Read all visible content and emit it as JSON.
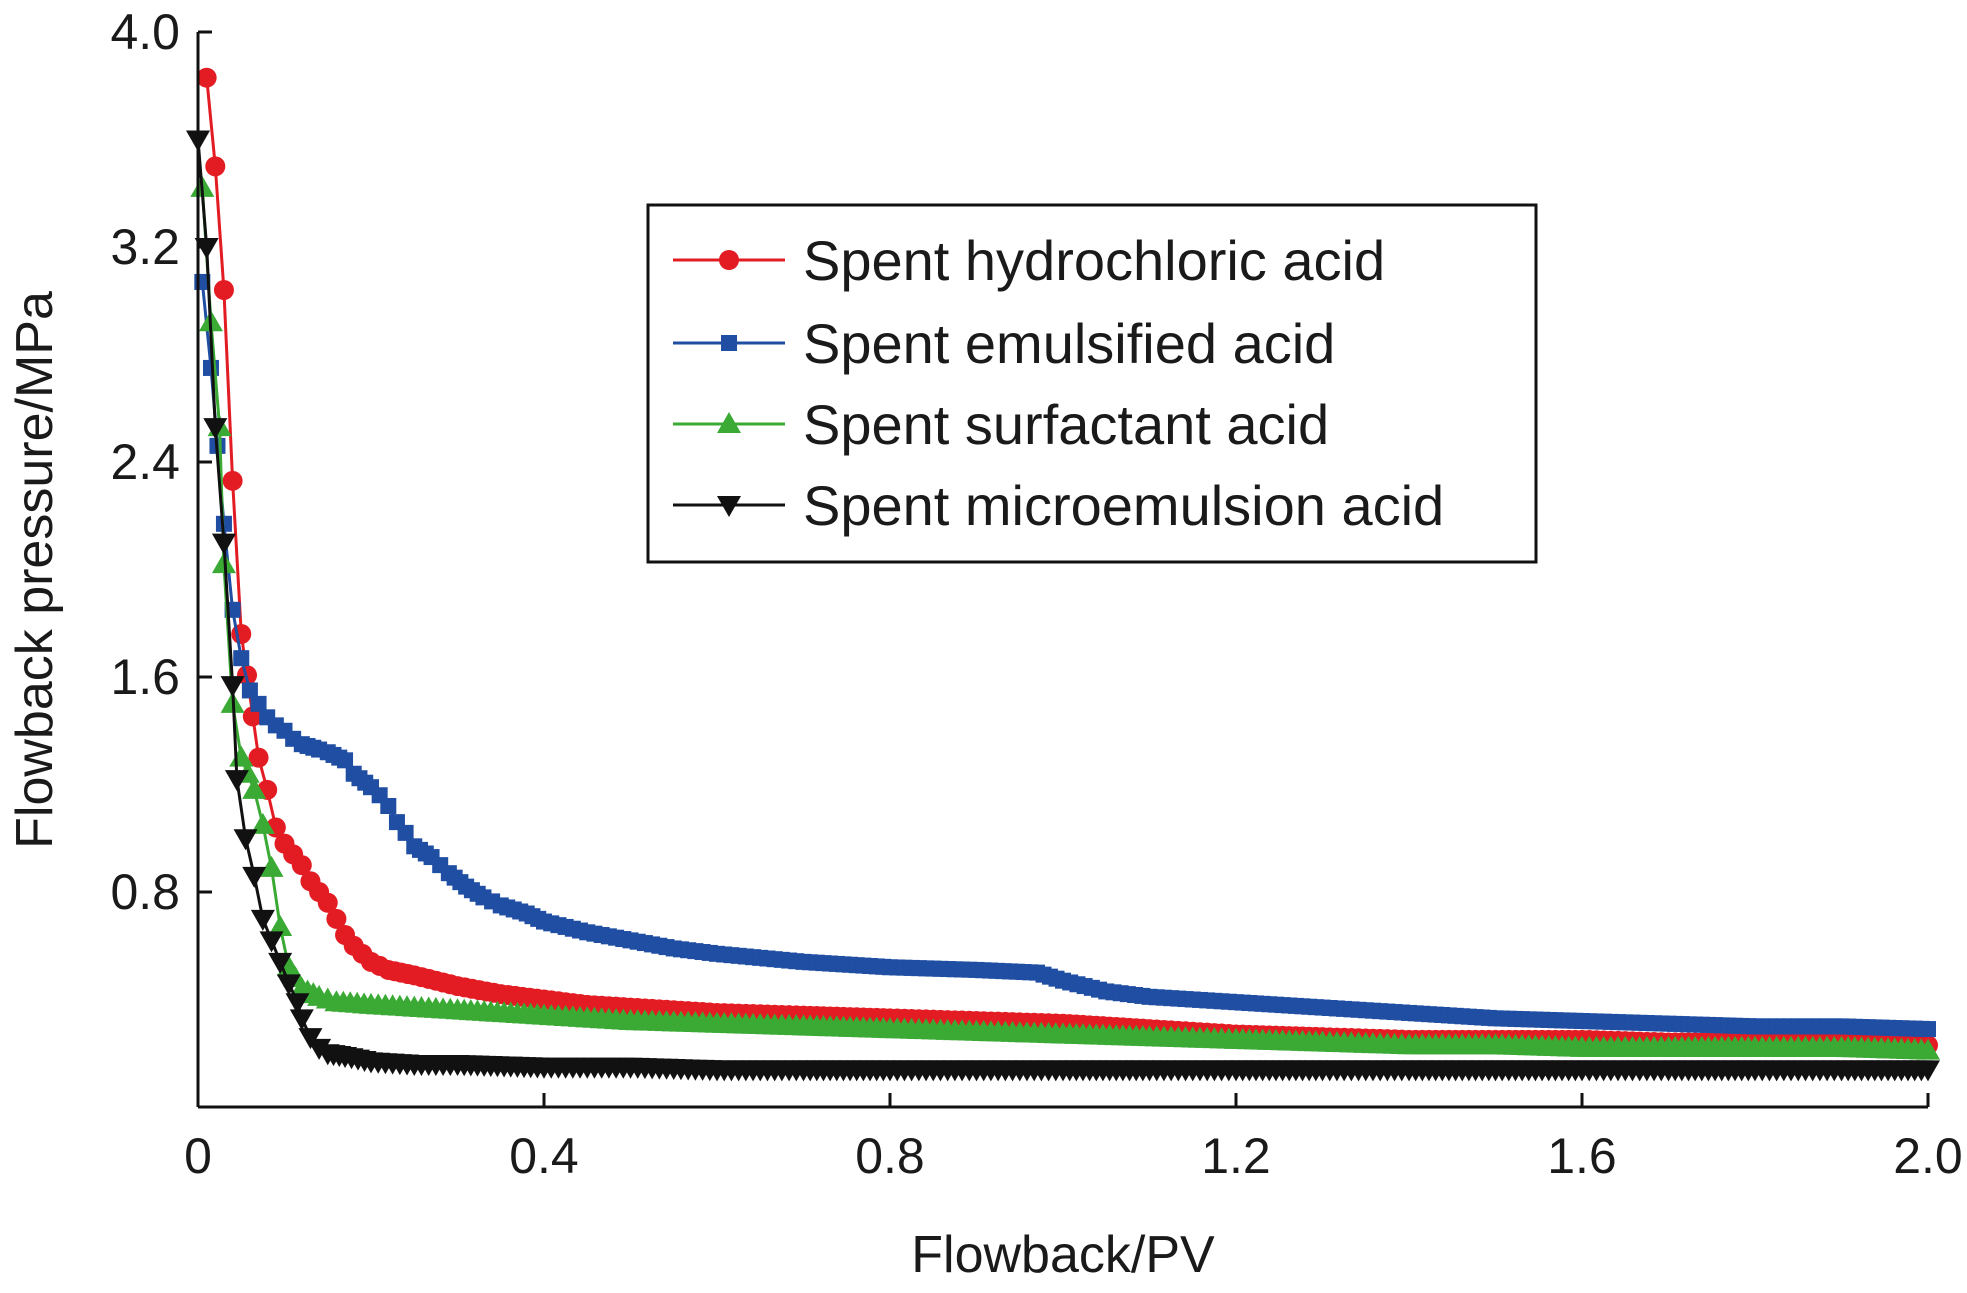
{
  "chart_data": {
    "type": "line",
    "xlabel": "Flowback/PV",
    "ylabel": "Flowback pressure/MPa",
    "xlim": [
      0,
      2.0
    ],
    "ylim": [
      0,
      4.0
    ],
    "x_ticks": [
      "0",
      "0.4",
      "0.8",
      "1.2",
      "1.6",
      "2.0"
    ],
    "y_ticks": [
      "0.8",
      "1.6",
      "2.4",
      "3.2",
      "4.0"
    ],
    "x_tick_values": [
      0,
      0.4,
      0.8,
      1.2,
      1.6,
      2.0
    ],
    "y_tick_values": [
      0.8,
      1.6,
      2.4,
      3.2,
      4.0
    ],
    "legend_position": "top-right",
    "series": [
      {
        "name": "Spent hydrochloric acid",
        "color": "#e31c23",
        "marker": "circle",
        "points": [
          [
            0.01,
            3.83
          ],
          [
            0.02,
            3.5
          ],
          [
            0.03,
            3.04
          ],
          [
            0.04,
            2.33
          ],
          [
            0.05,
            1.76
          ],
          [
            0.07,
            1.3
          ],
          [
            0.08,
            1.18
          ],
          [
            0.09,
            1.04
          ],
          [
            0.1,
            0.98
          ],
          [
            0.12,
            0.9
          ],
          [
            0.13,
            0.84
          ],
          [
            0.15,
            0.76
          ],
          [
            0.16,
            0.7
          ],
          [
            0.17,
            0.64
          ],
          [
            0.18,
            0.6
          ],
          [
            0.19,
            0.57
          ],
          [
            0.2,
            0.54
          ],
          [
            0.22,
            0.51
          ],
          [
            0.25,
            0.49
          ],
          [
            0.3,
            0.45
          ],
          [
            0.35,
            0.42
          ],
          [
            0.4,
            0.4
          ],
          [
            0.45,
            0.38
          ],
          [
            0.5,
            0.37
          ],
          [
            0.6,
            0.35
          ],
          [
            0.7,
            0.34
          ],
          [
            0.8,
            0.33
          ],
          [
            0.9,
            0.32
          ],
          [
            1.0,
            0.31
          ],
          [
            1.1,
            0.29
          ],
          [
            1.2,
            0.27
          ],
          [
            1.3,
            0.26
          ],
          [
            1.4,
            0.25
          ],
          [
            1.5,
            0.25
          ],
          [
            1.6,
            0.25
          ],
          [
            1.7,
            0.24
          ],
          [
            1.8,
            0.24
          ],
          [
            1.9,
            0.24
          ],
          [
            2.0,
            0.23
          ]
        ]
      },
      {
        "name": "Spent emulsified acid",
        "color": "#1f4ea3",
        "marker": "square",
        "points": [
          [
            0.005,
            3.07
          ],
          [
            0.015,
            2.75
          ],
          [
            0.03,
            2.17
          ],
          [
            0.04,
            1.85
          ],
          [
            0.05,
            1.67
          ],
          [
            0.06,
            1.55
          ],
          [
            0.07,
            1.5
          ],
          [
            0.08,
            1.45
          ],
          [
            0.09,
            1.42
          ],
          [
            0.1,
            1.4
          ],
          [
            0.11,
            1.37
          ],
          [
            0.12,
            1.35
          ],
          [
            0.14,
            1.33
          ],
          [
            0.15,
            1.32
          ],
          [
            0.17,
            1.29
          ],
          [
            0.18,
            1.24
          ],
          [
            0.2,
            1.19
          ],
          [
            0.21,
            1.16
          ],
          [
            0.22,
            1.12
          ],
          [
            0.23,
            1.06
          ],
          [
            0.24,
            1.02
          ],
          [
            0.25,
            0.97
          ],
          [
            0.27,
            0.93
          ],
          [
            0.29,
            0.87
          ],
          [
            0.31,
            0.82
          ],
          [
            0.33,
            0.78
          ],
          [
            0.35,
            0.75
          ],
          [
            0.38,
            0.72
          ],
          [
            0.4,
            0.69
          ],
          [
            0.45,
            0.65
          ],
          [
            0.5,
            0.62
          ],
          [
            0.55,
            0.59
          ],
          [
            0.6,
            0.57
          ],
          [
            0.7,
            0.54
          ],
          [
            0.8,
            0.52
          ],
          [
            0.9,
            0.51
          ],
          [
            0.97,
            0.5
          ],
          [
            1.0,
            0.47
          ],
          [
            1.05,
            0.43
          ],
          [
            1.1,
            0.41
          ],
          [
            1.2,
            0.39
          ],
          [
            1.3,
            0.37
          ],
          [
            1.4,
            0.35
          ],
          [
            1.5,
            0.33
          ],
          [
            1.6,
            0.32
          ],
          [
            1.7,
            0.31
          ],
          [
            1.8,
            0.3
          ],
          [
            1.9,
            0.3
          ],
          [
            2.0,
            0.29
          ]
        ]
      },
      {
        "name": "Spent surfactant acid",
        "color": "#3aaa35",
        "marker": "triangle-up",
        "points": [
          [
            0.005,
            3.42
          ],
          [
            0.015,
            2.92
          ],
          [
            0.025,
            2.53
          ],
          [
            0.03,
            2.02
          ],
          [
            0.04,
            1.5
          ],
          [
            0.05,
            1.3
          ],
          [
            0.065,
            1.18
          ],
          [
            0.075,
            1.05
          ],
          [
            0.085,
            0.89
          ],
          [
            0.095,
            0.67
          ],
          [
            0.105,
            0.52
          ],
          [
            0.12,
            0.44
          ],
          [
            0.14,
            0.41
          ],
          [
            0.16,
            0.39
          ],
          [
            0.2,
            0.38
          ],
          [
            0.3,
            0.36
          ],
          [
            0.4,
            0.34
          ],
          [
            0.5,
            0.32
          ],
          [
            0.6,
            0.31
          ],
          [
            0.7,
            0.3
          ],
          [
            0.8,
            0.29
          ],
          [
            0.9,
            0.28
          ],
          [
            1.0,
            0.27
          ],
          [
            1.1,
            0.26
          ],
          [
            1.2,
            0.25
          ],
          [
            1.3,
            0.24
          ],
          [
            1.4,
            0.23
          ],
          [
            1.5,
            0.23
          ],
          [
            1.6,
            0.22
          ],
          [
            1.7,
            0.22
          ],
          [
            1.8,
            0.22
          ],
          [
            1.9,
            0.22
          ],
          [
            2.0,
            0.21
          ]
        ]
      },
      {
        "name": "Spent microemulsion acid",
        "color": "#111111",
        "marker": "triangle-down",
        "points": [
          [
            0.0,
            3.6
          ],
          [
            0.01,
            3.2
          ],
          [
            0.02,
            2.53
          ],
          [
            0.03,
            2.1
          ],
          [
            0.04,
            1.57
          ],
          [
            0.045,
            1.22
          ],
          [
            0.055,
            1.0
          ],
          [
            0.065,
            0.86
          ],
          [
            0.075,
            0.7
          ],
          [
            0.085,
            0.62
          ],
          [
            0.095,
            0.54
          ],
          [
            0.105,
            0.46
          ],
          [
            0.115,
            0.39
          ],
          [
            0.12,
            0.33
          ],
          [
            0.13,
            0.26
          ],
          [
            0.14,
            0.22
          ],
          [
            0.15,
            0.2
          ],
          [
            0.17,
            0.19
          ],
          [
            0.2,
            0.17
          ],
          [
            0.25,
            0.16
          ],
          [
            0.3,
            0.16
          ],
          [
            0.4,
            0.15
          ],
          [
            0.5,
            0.15
          ],
          [
            0.6,
            0.14
          ],
          [
            0.7,
            0.14
          ],
          [
            0.8,
            0.14
          ],
          [
            0.9,
            0.14
          ],
          [
            1.0,
            0.14
          ],
          [
            1.1,
            0.14
          ],
          [
            1.2,
            0.14
          ],
          [
            1.3,
            0.14
          ],
          [
            1.4,
            0.14
          ],
          [
            1.5,
            0.14
          ],
          [
            1.6,
            0.14
          ],
          [
            1.7,
            0.14
          ],
          [
            1.8,
            0.14
          ],
          [
            1.9,
            0.14
          ],
          [
            2.0,
            0.14
          ]
        ]
      }
    ]
  }
}
